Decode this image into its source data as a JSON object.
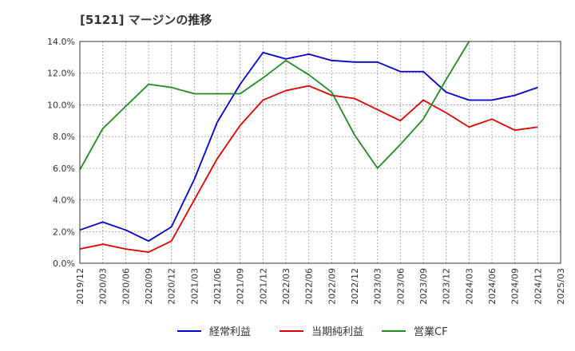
{
  "chart_data": {
    "type": "line",
    "title": "[5121]  マージンの推移",
    "xlabel": "",
    "ylabel": "",
    "ylim": [
      0,
      14
    ],
    "y_ticks": [
      "0.0%",
      "2.0%",
      "4.0%",
      "6.0%",
      "8.0%",
      "10.0%",
      "12.0%",
      "14.0%"
    ],
    "categories": [
      "2019/12",
      "2020/03",
      "2020/06",
      "2020/09",
      "2020/12",
      "2021/03",
      "2021/06",
      "2021/09",
      "2021/12",
      "2022/03",
      "2022/06",
      "2022/09",
      "2022/12",
      "2023/03",
      "2023/06",
      "2023/09",
      "2023/12",
      "2024/03",
      "2024/06",
      "2024/09",
      "2024/12",
      "2025/03"
    ],
    "grid": true,
    "legend_position": "bottom",
    "series": [
      {
        "name": "経常利益",
        "color": "#0000cc",
        "values": [
          2.1,
          2.6,
          2.1,
          1.4,
          2.3,
          5.3,
          8.9,
          11.3,
          13.3,
          12.9,
          13.2,
          12.8,
          12.7,
          12.7,
          12.1,
          12.1,
          10.8,
          10.3,
          10.3,
          10.6,
          11.1,
          null
        ]
      },
      {
        "name": "当期純利益",
        "color": "#dd0000",
        "values": [
          0.9,
          1.2,
          0.9,
          0.7,
          1.4,
          4.0,
          6.6,
          8.7,
          10.3,
          10.9,
          11.2,
          10.6,
          10.4,
          9.7,
          9.0,
          10.3,
          9.5,
          8.6,
          9.1,
          8.4,
          8.6,
          null
        ]
      },
      {
        "name": "営業CF",
        "color": "#228822",
        "values": [
          5.9,
          8.5,
          9.9,
          11.3,
          11.1,
          10.7,
          10.7,
          10.7,
          11.7,
          12.8,
          11.9,
          10.8,
          8.1,
          6.0,
          7.5,
          9.1,
          11.6,
          14.0,
          null,
          null,
          null,
          null
        ]
      }
    ]
  }
}
